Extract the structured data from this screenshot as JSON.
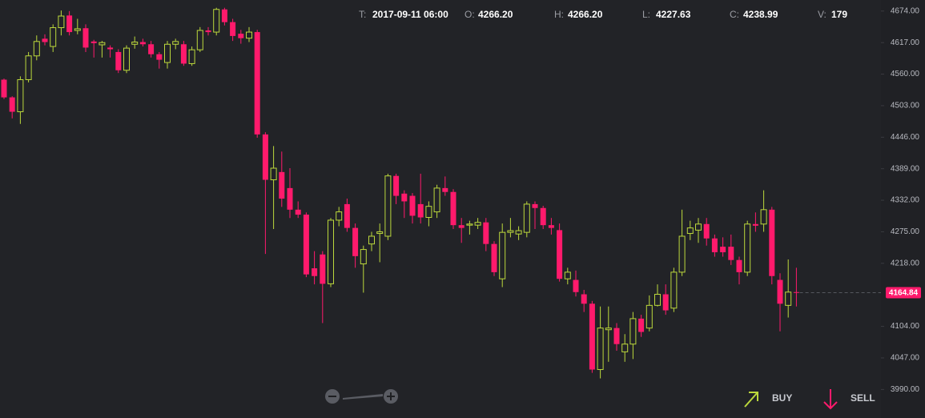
{
  "chart_data": {
    "type": "candlestick",
    "info": [
      {
        "label": "T:",
        "value": "2017-09-11 06:00"
      },
      {
        "label": "O:",
        "value": "4266.20"
      },
      {
        "label": "H:",
        "value": "4266.20"
      },
      {
        "label": "L:",
        "value": "4227.63"
      },
      {
        "label": "C:",
        "value": "4238.99"
      },
      {
        "label": "V:",
        "value": "179"
      }
    ],
    "open": [
      4550,
      4518,
      4492,
      4550,
      4593,
      4624,
      4610,
      4644,
      4666,
      4639,
      4643,
      4619,
      4613,
      4608,
      4600,
      4567,
      4614,
      4618,
      4614,
      4596,
      4581,
      4614,
      4614,
      4579,
      4604,
      4639,
      4636,
      4677,
      4654,
      4633,
      4625,
      4636,
      4451,
      4369,
      4383,
      4354,
      4315,
      4306,
      4209,
      4234,
      4181,
      4296,
      4325,
      4282,
      4217,
      4253,
      4272,
      4267,
      4376,
      4344,
      4340,
      4325,
      4301,
      4311,
      4354,
      4347,
      4287,
      4287,
      4287,
      4292,
      4253,
      4190,
      4274,
      4271,
      4274,
      4325,
      4318,
      4287,
      4278,
      4190,
      4188,
      4162,
      4145,
      4026,
      4098,
      4101,
      4058,
      4072,
      4118,
      4101,
      4142,
      4162,
      4137,
      4202,
      4272,
      4278,
      4289,
      4263,
      4248,
      4248,
      4224,
      4202,
      4289,
      4289,
      4315,
      4188,
      4142,
      4166
    ],
    "high": [
      4552,
      4520,
      4556,
      4600,
      4630,
      4632,
      4650,
      4675,
      4674,
      4660,
      4650,
      4622,
      4620,
      4612,
      4605,
      4612,
      4628,
      4624,
      4620,
      4600,
      4620,
      4624,
      4620,
      4610,
      4645,
      4645,
      4680,
      4680,
      4660,
      4640,
      4645,
      4640,
      4455,
      4430,
      4420,
      4390,
      4330,
      4310,
      4240,
      4240,
      4300,
      4320,
      4335,
      4290,
      4250,
      4275,
      4290,
      4380,
      4380,
      4350,
      4345,
      4380,
      4330,
      4360,
      4375,
      4352,
      4300,
      4295,
      4300,
      4300,
      4258,
      4290,
      4300,
      4285,
      4330,
      4330,
      4322,
      4300,
      4290,
      4210,
      4205,
      4170,
      4150,
      4140,
      4140,
      4110,
      4090,
      4130,
      4125,
      4160,
      4180,
      4180,
      4210,
      4315,
      4295,
      4300,
      4300,
      4270,
      4265,
      4270,
      4230,
      4295,
      4310,
      4350,
      4320,
      4200,
      4225,
      4210
    ],
    "low": [
      4515,
      4480,
      4470,
      4545,
      4585,
      4612,
      4600,
      4630,
      4630,
      4632,
      4600,
      4590,
      4590,
      4590,
      4562,
      4562,
      4606,
      4610,
      4590,
      4570,
      4570,
      4605,
      4575,
      4575,
      4600,
      4630,
      4630,
      4648,
      4620,
      4615,
      4618,
      4445,
      4235,
      4280,
      4320,
      4300,
      4300,
      4193,
      4180,
      4110,
      4175,
      4285,
      4275,
      4210,
      4165,
      4240,
      4220,
      4260,
      4325,
      4300,
      4290,
      4290,
      4285,
      4300,
      4340,
      4280,
      4255,
      4270,
      4280,
      4240,
      4195,
      4175,
      4265,
      4260,
      4265,
      4280,
      4280,
      4270,
      4185,
      4180,
      4158,
      4130,
      4020,
      4010,
      4040,
      4060,
      4040,
      4045,
      4085,
      4095,
      4140,
      4125,
      4130,
      4195,
      4260,
      4255,
      4250,
      4230,
      4230,
      4215,
      4180,
      4195,
      4275,
      4275,
      4180,
      4095,
      4120,
      4140
    ],
    "close": [
      4518,
      4492,
      4550,
      4593,
      4619,
      4618,
      4644,
      4665,
      4636,
      4642,
      4608,
      4616,
      4617,
      4605,
      4567,
      4607,
      4618,
      4614,
      4596,
      4586,
      4614,
      4619,
      4579,
      4604,
      4639,
      4636,
      4677,
      4654,
      4629,
      4625,
      4636,
      4451,
      4369,
      4390,
      4335,
      4315,
      4306,
      4198,
      4195,
      4181,
      4296,
      4311,
      4282,
      4231,
      4243,
      4267,
      4275,
      4376,
      4340,
      4330,
      4304,
      4301,
      4321,
      4354,
      4347,
      4287,
      4282,
      4289,
      4292,
      4253,
      4202,
      4274,
      4277,
      4277,
      4325,
      4318,
      4287,
      4282,
      4190,
      4202,
      4166,
      4145,
      4026,
      4101,
      4101,
      4072,
      4072,
      4118,
      4094,
      4142,
      4162,
      4133,
      4202,
      4267,
      4282,
      4289,
      4263,
      4238,
      4238,
      4224,
      4202,
      4289,
      4286,
      4315,
      4195,
      4145,
      4166,
      4164.84
    ],
    "up_color": "#bcd83c",
    "down_color": "#ff1a6c",
    "last_price": 4164.84,
    "ylim": [
      3963,
      4694
    ],
    "yticks": [
      {
        "value": 3990,
        "label": "3990.00"
      },
      {
        "value": 4047,
        "label": "4047.00"
      },
      {
        "value": 4104,
        "label": "4104.00"
      },
      {
        "value": 4218,
        "label": "4218.00"
      },
      {
        "value": 4275,
        "label": "4275.00"
      },
      {
        "value": 4332,
        "label": "4332.00"
      },
      {
        "value": 4389,
        "label": "4389.00"
      },
      {
        "value": 4446,
        "label": "4446.00"
      },
      {
        "value": 4503,
        "label": "4503.00"
      },
      {
        "value": 4560,
        "label": "4560.00"
      },
      {
        "value": 4617,
        "label": "4617.00"
      },
      {
        "value": 4674,
        "label": "4674.00"
      }
    ],
    "grid": false,
    "buttons": [
      "BUY",
      "SELL"
    ]
  }
}
